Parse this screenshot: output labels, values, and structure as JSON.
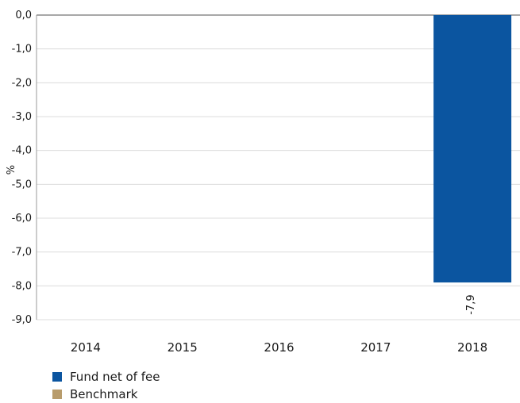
{
  "chart_data": {
    "type": "bar",
    "categories": [
      "2014",
      "2015",
      "2016",
      "2017",
      "2018"
    ],
    "series": [
      {
        "name": "Fund net of fee",
        "color": "#0b55a0",
        "values": [
          null,
          null,
          null,
          null,
          -7.9
        ]
      },
      {
        "name": "Benchmark",
        "color": "#b89c6c",
        "values": [
          null,
          null,
          null,
          null,
          null
        ]
      }
    ],
    "ylabel": "%",
    "ylim": [
      -9,
      0
    ],
    "yticks": [
      "0,0",
      "-1,0",
      "-2,0",
      "-3,0",
      "-4,0",
      "-5,0",
      "-6,0",
      "-7,0",
      "-8,0",
      "-9,0"
    ],
    "data_labels": [
      "",
      "",
      "",
      "",
      "-7,9"
    ],
    "grid": true,
    "legend_position": "bottom-left"
  }
}
